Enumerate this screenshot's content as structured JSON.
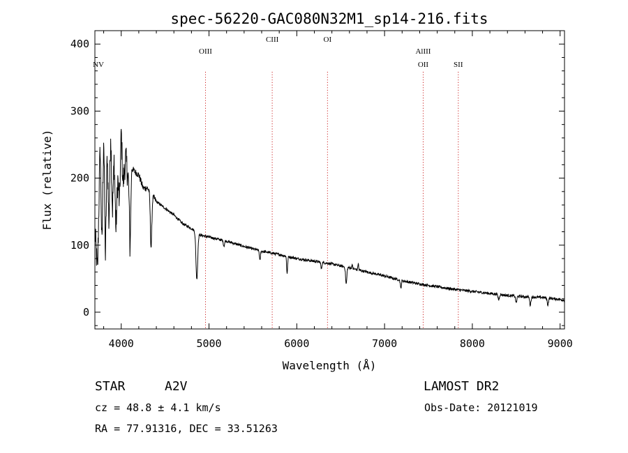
{
  "chart_data": {
    "type": "line",
    "title": "spec-56220-GAC080N32M1_sp14-216.fits",
    "xlabel": "Wavelength (Å)",
    "ylabel": "Flux (relative)",
    "xlim": [
      3700,
      9050
    ],
    "ylim": [
      -25,
      420
    ],
    "x_ticks": [
      4000,
      5000,
      6000,
      7000,
      8000,
      9000
    ],
    "y_ticks": [
      0,
      100,
      200,
      300,
      400
    ],
    "grid": false,
    "lines": [
      {
        "label": "NV",
        "x": 3740,
        "tier": 2,
        "dotted": false
      },
      {
        "label": "OIII",
        "x": 4960,
        "tier": 1,
        "dotted": true
      },
      {
        "label": "CIII",
        "x": 5720,
        "tier": 0,
        "dotted": true
      },
      {
        "label": "OI",
        "x": 6350,
        "tier": 0,
        "dotted": true
      },
      {
        "label": "AlIII",
        "x": 7440,
        "tier": 1,
        "dotted": true
      },
      {
        "label": "OII",
        "x": 7440,
        "tier": 2,
        "dotted": true
      },
      {
        "label": "SII",
        "x": 7840,
        "tier": 2,
        "dotted": true
      }
    ],
    "spectrum_anchors": [
      [
        3700,
        120
      ],
      [
        3730,
        60
      ],
      [
        3760,
        250
      ],
      [
        3780,
        90
      ],
      [
        3800,
        270
      ],
      [
        3820,
        80
      ],
      [
        3840,
        240
      ],
      [
        3860,
        130
      ],
      [
        3880,
        270
      ],
      [
        3900,
        150
      ],
      [
        3920,
        230
      ],
      [
        3940,
        120
      ],
      [
        3960,
        200
      ],
      [
        3980,
        160
      ],
      [
        4000,
        270
      ],
      [
        4020,
        190
      ],
      [
        4050,
        230
      ],
      [
        4080,
        200
      ],
      [
        4100,
        150
      ],
      [
        4120,
        215
      ],
      [
        4150,
        210
      ],
      [
        4200,
        205
      ],
      [
        4250,
        185
      ],
      [
        4300,
        185
      ],
      [
        4400,
        165
      ],
      [
        4500,
        155
      ],
      [
        4600,
        145
      ],
      [
        4700,
        132
      ],
      [
        4800,
        125
      ],
      [
        4900,
        115
      ],
      [
        5000,
        112
      ],
      [
        5200,
        106
      ],
      [
        5400,
        98
      ],
      [
        5600,
        91
      ],
      [
        5800,
        86
      ],
      [
        6000,
        80
      ],
      [
        6200,
        76
      ],
      [
        6400,
        72
      ],
      [
        6600,
        66
      ],
      [
        6800,
        60
      ],
      [
        7000,
        54
      ],
      [
        7200,
        47
      ],
      [
        7400,
        42
      ],
      [
        7600,
        38
      ],
      [
        7800,
        34
      ],
      [
        8000,
        31
      ],
      [
        8200,
        28
      ],
      [
        8400,
        25
      ],
      [
        8600,
        23
      ],
      [
        8800,
        22
      ],
      [
        9000,
        19
      ],
      [
        9050,
        18
      ]
    ],
    "absorption_features": [
      [
        4101,
        55,
        10
      ],
      [
        4340,
        80,
        12
      ],
      [
        4861,
        70,
        14
      ],
      [
        5170,
        8,
        10
      ],
      [
        5580,
        15,
        8
      ],
      [
        5890,
        25,
        8
      ],
      [
        6280,
        10,
        8
      ],
      [
        6563,
        25,
        10
      ],
      [
        7185,
        12,
        8
      ],
      [
        8300,
        8,
        10
      ],
      [
        8500,
        10,
        10
      ],
      [
        8660,
        12,
        10
      ],
      [
        8860,
        10,
        10
      ]
    ],
    "emission_features": [
      [
        6700,
        10,
        6
      ],
      [
        6630,
        6,
        6
      ]
    ]
  },
  "info": {
    "object_type": "STAR",
    "subclass": "A2V",
    "survey": "LAMOST DR2",
    "cz": "cz = 48.8 ± 4.1 km/s",
    "obs_date": "Obs-Date: 20121019",
    "coords": "RA =  77.91316, DEC =  33.51263"
  }
}
